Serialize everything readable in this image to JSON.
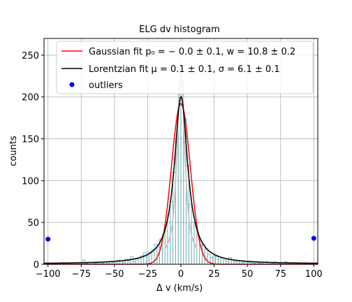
{
  "chart_data": {
    "type": "line",
    "title": "ELG dv histogram",
    "xlabel": "Δ v (km/s)",
    "ylabel": "counts",
    "xlim": [
      -103,
      103
    ],
    "ylim": [
      0,
      270
    ],
    "xticks": [
      -100,
      -75,
      -50,
      -25,
      0,
      25,
      50,
      75,
      100
    ],
    "yticks": [
      0,
      50,
      100,
      150,
      200,
      250
    ],
    "xtick_labels": [
      "−100",
      "−75",
      "−50",
      "−25",
      "0",
      "25",
      "50",
      "75",
      "100"
    ],
    "ytick_labels": [
      "0",
      "50",
      "100",
      "150",
      "200",
      "250"
    ],
    "grid": true,
    "legend_position": "top",
    "legend_entries": [
      {
        "key": "gaussian",
        "label": "Gaussian fit p₀ = − 0.0 ± 0.1, w = 10.8 ± 0.2"
      },
      {
        "key": "lorentzian",
        "label": "Lorentzian fit μ = 0.1 ± 0.1, σ = 6.1 ± 0.1"
      },
      {
        "key": "outliers",
        "label": "outliers"
      }
    ],
    "histogram": {
      "x": [
        -100,
        -98,
        -96,
        -94,
        -92,
        -90,
        -88,
        -86,
        -84,
        -82,
        -80,
        -78,
        -76,
        -74,
        -72,
        -70,
        -68,
        -66,
        -64,
        -62,
        -60,
        -58,
        -56,
        -54,
        -52,
        -50,
        -48,
        -46,
        -44,
        -42,
        -40,
        -38,
        -36,
        -34,
        -32,
        -30,
        -28,
        -26,
        -24,
        -22,
        -20,
        -18,
        -16,
        -14,
        -12,
        -10,
        -8,
        -6,
        -4,
        -2,
        0,
        2,
        4,
        6,
        8,
        10,
        12,
        14,
        16,
        18,
        20,
        22,
        24,
        26,
        28,
        30,
        32,
        34,
        36,
        38,
        40,
        42,
        44,
        46,
        48,
        50,
        52,
        54,
        56,
        58,
        60,
        62,
        64,
        66,
        68,
        70,
        72,
        74,
        76,
        78,
        80,
        82,
        84,
        86,
        88,
        90,
        92,
        94,
        96,
        98
      ],
      "values": [
        0,
        1,
        0,
        0,
        1,
        2,
        0,
        1,
        1,
        0,
        1,
        2,
        0,
        5,
        1,
        0,
        2,
        1,
        1,
        2,
        1,
        3,
        2,
        3,
        2,
        3,
        5,
        4,
        2,
        6,
        4,
        9,
        3,
        6,
        7,
        10,
        14,
        12,
        15,
        18,
        24,
        20,
        30,
        36,
        40,
        60,
        75,
        110,
        150,
        210,
        218,
        175,
        118,
        72,
        50,
        46,
        34,
        22,
        24,
        18,
        12,
        8,
        10,
        9,
        6,
        7,
        5,
        4,
        8,
        5,
        3,
        4,
        4,
        2,
        3,
        2,
        2,
        1,
        2,
        1,
        1,
        2,
        3,
        2,
        1,
        3,
        2,
        1,
        2,
        3,
        1,
        1,
        2,
        1,
        1,
        1,
        1,
        0,
        1,
        1
      ]
    },
    "series": [
      {
        "name": "Gaussian fit",
        "color": "#ff0000",
        "model": "gaussian",
        "amplitude": 192,
        "center": 0.0,
        "width": 10.8
      },
      {
        "name": "Lorentzian fit",
        "color": "#000000",
        "model": "lorentzian",
        "amplitude": 200,
        "center": 0.1,
        "sigma": 6.1,
        "offset": 0.5
      }
    ],
    "outliers": {
      "color": "#0000ff",
      "points": [
        {
          "x": -100,
          "y": 30
        },
        {
          "x": 100,
          "y": 31
        }
      ]
    },
    "histogram_color": "#5fa8b4",
    "smooth_peak_color": "#c8c8c8"
  }
}
